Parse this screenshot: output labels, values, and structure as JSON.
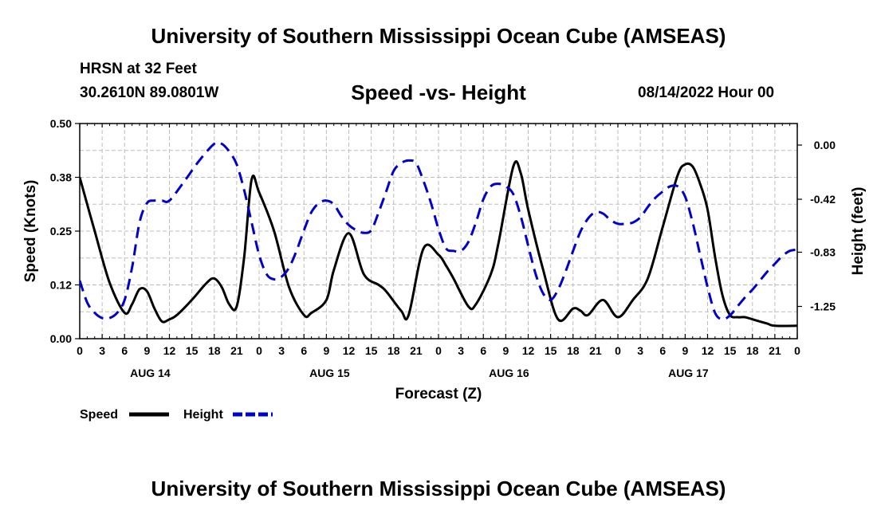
{
  "header": {
    "title": "University of Southern Mississippi Ocean Cube (AMSEAS)",
    "station": "HRSN at 32 Feet",
    "coords": "30.2610N  89.0801W",
    "subtitle": "Speed -vs- Height",
    "datetime": "08/14/2022 Hour 00"
  },
  "footer": {
    "title": "University of Southern Mississippi Ocean Cube (AMSEAS)"
  },
  "chart_data": {
    "type": "line",
    "title": "Speed -vs- Height",
    "xlabel": "Forecast (Z)",
    "ylabel": "Speed (Knots)",
    "y2label": "Height (feet)",
    "xlim": [
      0,
      96
    ],
    "ylim": [
      0,
      0.5
    ],
    "y2lim": [
      -1.5,
      0.1667
    ],
    "y_ticks": [
      "0.00",
      "0.12",
      "0.25",
      "0.38",
      "0.50"
    ],
    "y2_ticks": [
      "0.00",
      "-0.42",
      "-0.83",
      "-1.25"
    ],
    "y2_tick_values": [
      0.0,
      -0.42,
      -0.83,
      -1.25
    ],
    "x_tick_labels": [
      "0",
      "3",
      "6",
      "9",
      "12",
      "15",
      "18",
      "21",
      "0",
      "3",
      "6",
      "9",
      "12",
      "15",
      "18",
      "21",
      "0",
      "3",
      "6",
      "9",
      "12",
      "15",
      "18",
      "21",
      "0",
      "3",
      "6",
      "9",
      "12",
      "15",
      "18",
      "21",
      "0"
    ],
    "day_labels": [
      {
        "label": "AUG 14",
        "hour": 9
      },
      {
        "label": "AUG 15",
        "hour": 33
      },
      {
        "label": "AUG 16",
        "hour": 57
      },
      {
        "label": "AUG 17",
        "hour": 81
      }
    ],
    "legend": [
      "Speed",
      "Height"
    ],
    "series": [
      {
        "name": "Speed",
        "axis": "left",
        "color": "#000000",
        "style": "solid",
        "x": [
          0,
          2,
          4,
          6,
          7,
          8,
          9,
          10,
          11,
          12,
          13,
          15,
          17,
          18,
          19,
          20,
          21,
          22,
          23,
          24,
          26,
          28,
          30,
          31,
          33,
          34,
          36,
          38,
          40,
          41,
          43,
          44,
          46,
          48,
          49,
          50,
          52,
          53,
          55,
          56,
          58,
          59,
          60,
          62,
          64,
          66,
          67,
          68,
          70,
          72,
          74,
          76,
          78,
          80,
          81,
          82,
          83,
          84,
          85,
          86,
          87,
          88,
          89,
          90,
          91,
          92,
          93,
          96
        ],
        "values": [
          0.375,
          0.25,
          0.13,
          0.06,
          0.08,
          0.115,
          0.11,
          0.07,
          0.04,
          0.045,
          0.055,
          0.09,
          0.13,
          0.14,
          0.12,
          0.08,
          0.075,
          0.19,
          0.37,
          0.34,
          0.25,
          0.12,
          0.055,
          0.06,
          0.09,
          0.16,
          0.245,
          0.15,
          0.125,
          0.11,
          0.065,
          0.055,
          0.21,
          0.195,
          0.17,
          0.14,
          0.075,
          0.08,
          0.15,
          0.22,
          0.4,
          0.385,
          0.3,
          0.16,
          0.045,
          0.07,
          0.065,
          0.055,
          0.09,
          0.05,
          0.09,
          0.14,
          0.26,
          0.38,
          0.405,
          0.4,
          0.36,
          0.3,
          0.19,
          0.1,
          0.055,
          0.05,
          0.05,
          0.045,
          0.04,
          0.035,
          0.03,
          0.03
        ]
      },
      {
        "name": "Height",
        "axis": "right",
        "color": "#0000cc",
        "style": "dashed",
        "x": [
          0,
          1,
          2,
          3,
          4,
          5,
          6,
          7,
          8,
          9,
          10,
          11,
          12,
          14,
          16,
          18,
          19,
          20,
          21,
          22,
          23,
          24,
          25,
          26,
          27,
          28,
          29,
          30,
          31,
          32,
          33,
          34,
          35,
          36,
          37,
          38,
          39,
          40,
          41,
          42,
          43,
          44,
          45,
          46,
          47,
          48,
          49,
          50,
          51,
          52,
          53,
          54,
          55,
          56,
          57,
          58,
          59,
          60,
          61,
          62,
          63,
          64,
          65,
          66,
          67,
          68,
          69,
          70,
          71,
          72,
          73,
          74,
          75,
          76,
          77,
          78,
          79,
          80,
          81,
          82,
          83,
          84,
          85,
          86,
          87,
          88,
          89,
          90,
          91,
          92,
          93,
          94,
          95,
          96
        ],
        "values": [
          -1.05,
          -1.22,
          -1.3,
          -1.34,
          -1.34,
          -1.3,
          -1.2,
          -0.95,
          -0.6,
          -0.45,
          -0.43,
          -0.43,
          -0.43,
          -0.28,
          -0.12,
          0.01,
          0.01,
          -0.05,
          -0.15,
          -0.35,
          -0.6,
          -0.85,
          -1.0,
          -1.04,
          -1.02,
          -0.95,
          -0.82,
          -0.66,
          -0.52,
          -0.45,
          -0.43,
          -0.46,
          -0.55,
          -0.62,
          -0.66,
          -0.68,
          -0.66,
          -0.52,
          -0.36,
          -0.2,
          -0.14,
          -0.12,
          -0.14,
          -0.28,
          -0.45,
          -0.65,
          -0.8,
          -0.82,
          -0.82,
          -0.75,
          -0.6,
          -0.42,
          -0.32,
          -0.3,
          -0.32,
          -0.38,
          -0.55,
          -0.78,
          -1.0,
          -1.15,
          -1.2,
          -1.12,
          -0.98,
          -0.82,
          -0.67,
          -0.57,
          -0.52,
          -0.53,
          -0.58,
          -0.61,
          -0.61,
          -0.6,
          -0.56,
          -0.48,
          -0.41,
          -0.36,
          -0.32,
          -0.32,
          -0.4,
          -0.6,
          -0.85,
          -1.1,
          -1.3,
          -1.35,
          -1.32,
          -1.25,
          -1.18,
          -1.12,
          -1.05,
          -0.98,
          -0.92,
          -0.86,
          -0.82,
          -0.81
        ]
      }
    ]
  }
}
